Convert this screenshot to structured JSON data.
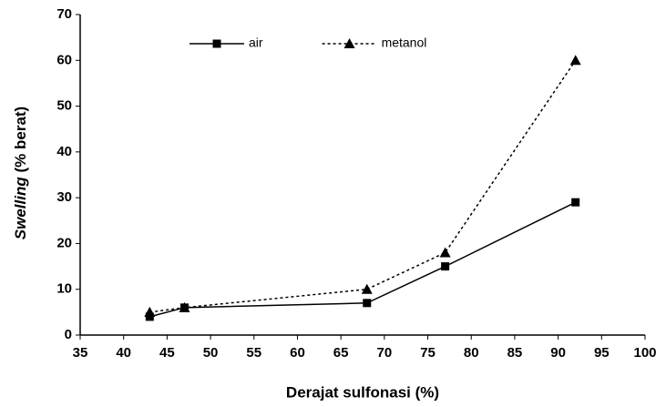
{
  "chart_data": {
    "type": "line",
    "x_label": "Derajat sulfonasi (%)",
    "y_label": {
      "italic": "Swelling",
      "rest": "(% berat)"
    },
    "x": [
      43,
      47,
      68,
      77,
      92
    ],
    "series": [
      {
        "name": "air",
        "color": "#000000",
        "line_style": "solid",
        "marker": "square",
        "values": [
          4,
          6,
          7,
          15,
          29
        ]
      },
      {
        "name": "metanol",
        "color": "#000000",
        "line_style": "dotted",
        "marker": "triangle",
        "values": [
          5,
          6,
          10,
          18,
          60
        ]
      }
    ],
    "xlim": [
      35,
      100
    ],
    "xticks": [
      35,
      40,
      45,
      50,
      55,
      60,
      65,
      70,
      75,
      80,
      85,
      90,
      95,
      100
    ],
    "ylim": [
      0,
      70
    ],
    "yticks": [
      0,
      10,
      20,
      30,
      40,
      50,
      60,
      70
    ],
    "grid": false,
    "legend": "top"
  }
}
